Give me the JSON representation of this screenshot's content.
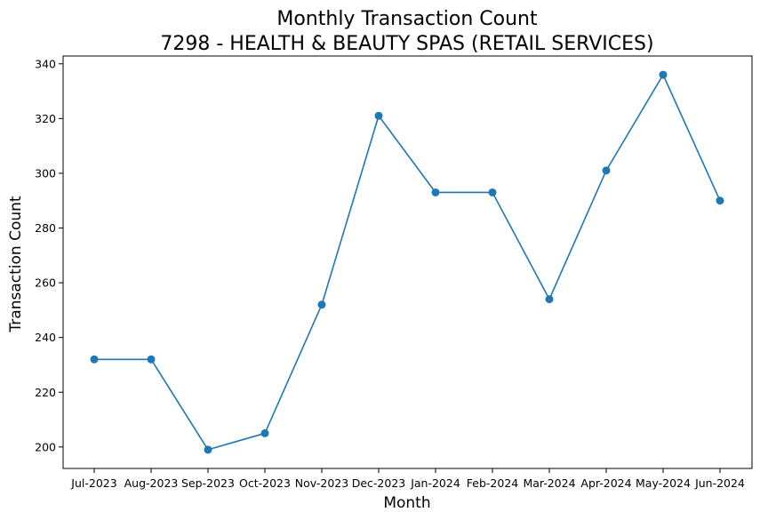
{
  "chart_data": {
    "type": "line",
    "title": "Monthly Transaction Count",
    "subtitle": "7298 - HEALTH & BEAUTY SPAS (RETAIL SERVICES)",
    "xlabel": "Month",
    "ylabel": "Transaction Count",
    "categories": [
      "Jul-2023",
      "Aug-2023",
      "Sep-2023",
      "Oct-2023",
      "Nov-2023",
      "Dec-2023",
      "Jan-2024",
      "Feb-2024",
      "Mar-2024",
      "Apr-2024",
      "May-2024",
      "Jun-2024"
    ],
    "series": [
      {
        "values": [
          232,
          232,
          199,
          205,
          252,
          321,
          293,
          293,
          254,
          301,
          336,
          290
        ],
        "color": "#1f77b4",
        "marker": "circle"
      }
    ],
    "yticks": [
      200,
      220,
      240,
      260,
      280,
      300,
      320,
      340
    ],
    "ylim": [
      192.15,
      342.85
    ],
    "grid": false,
    "legend": "none"
  }
}
